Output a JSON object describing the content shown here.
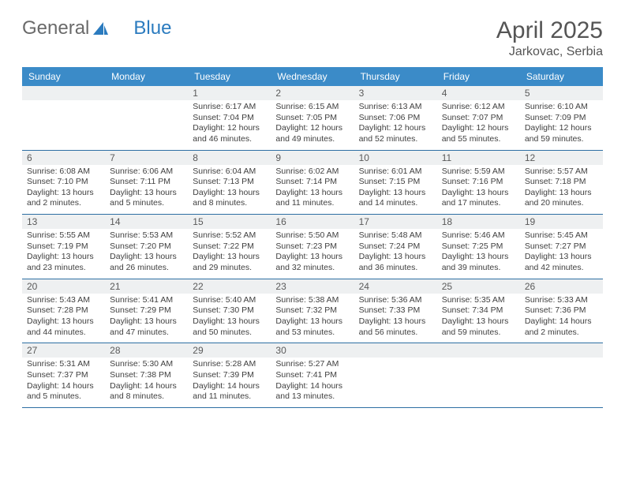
{
  "logo": {
    "text_a": "General",
    "text_b": "Blue"
  },
  "title": "April 2025",
  "subtitle": "Jarkovac, Serbia",
  "colors": {
    "header_bg": "#3b8bc8",
    "header_text": "#ffffff",
    "daynum_bg": "#eef0f1",
    "daynum_text": "#5a5a5a",
    "body_text": "#404040",
    "week_divider": "#2e6fa3",
    "page_bg": "#ffffff",
    "logo_gray": "#6a6a6a",
    "logo_blue": "#2b7bbf"
  },
  "weekdays": [
    "Sunday",
    "Monday",
    "Tuesday",
    "Wednesday",
    "Thursday",
    "Friday",
    "Saturday"
  ],
  "weeks": [
    [
      {
        "day": "",
        "sunrise": "",
        "sunset": "",
        "daylight": ""
      },
      {
        "day": "",
        "sunrise": "",
        "sunset": "",
        "daylight": ""
      },
      {
        "day": "1",
        "sunrise": "Sunrise: 6:17 AM",
        "sunset": "Sunset: 7:04 PM",
        "daylight": "Daylight: 12 hours and 46 minutes."
      },
      {
        "day": "2",
        "sunrise": "Sunrise: 6:15 AM",
        "sunset": "Sunset: 7:05 PM",
        "daylight": "Daylight: 12 hours and 49 minutes."
      },
      {
        "day": "3",
        "sunrise": "Sunrise: 6:13 AM",
        "sunset": "Sunset: 7:06 PM",
        "daylight": "Daylight: 12 hours and 52 minutes."
      },
      {
        "day": "4",
        "sunrise": "Sunrise: 6:12 AM",
        "sunset": "Sunset: 7:07 PM",
        "daylight": "Daylight: 12 hours and 55 minutes."
      },
      {
        "day": "5",
        "sunrise": "Sunrise: 6:10 AM",
        "sunset": "Sunset: 7:09 PM",
        "daylight": "Daylight: 12 hours and 59 minutes."
      }
    ],
    [
      {
        "day": "6",
        "sunrise": "Sunrise: 6:08 AM",
        "sunset": "Sunset: 7:10 PM",
        "daylight": "Daylight: 13 hours and 2 minutes."
      },
      {
        "day": "7",
        "sunrise": "Sunrise: 6:06 AM",
        "sunset": "Sunset: 7:11 PM",
        "daylight": "Daylight: 13 hours and 5 minutes."
      },
      {
        "day": "8",
        "sunrise": "Sunrise: 6:04 AM",
        "sunset": "Sunset: 7:13 PM",
        "daylight": "Daylight: 13 hours and 8 minutes."
      },
      {
        "day": "9",
        "sunrise": "Sunrise: 6:02 AM",
        "sunset": "Sunset: 7:14 PM",
        "daylight": "Daylight: 13 hours and 11 minutes."
      },
      {
        "day": "10",
        "sunrise": "Sunrise: 6:01 AM",
        "sunset": "Sunset: 7:15 PM",
        "daylight": "Daylight: 13 hours and 14 minutes."
      },
      {
        "day": "11",
        "sunrise": "Sunrise: 5:59 AM",
        "sunset": "Sunset: 7:16 PM",
        "daylight": "Daylight: 13 hours and 17 minutes."
      },
      {
        "day": "12",
        "sunrise": "Sunrise: 5:57 AM",
        "sunset": "Sunset: 7:18 PM",
        "daylight": "Daylight: 13 hours and 20 minutes."
      }
    ],
    [
      {
        "day": "13",
        "sunrise": "Sunrise: 5:55 AM",
        "sunset": "Sunset: 7:19 PM",
        "daylight": "Daylight: 13 hours and 23 minutes."
      },
      {
        "day": "14",
        "sunrise": "Sunrise: 5:53 AM",
        "sunset": "Sunset: 7:20 PM",
        "daylight": "Daylight: 13 hours and 26 minutes."
      },
      {
        "day": "15",
        "sunrise": "Sunrise: 5:52 AM",
        "sunset": "Sunset: 7:22 PM",
        "daylight": "Daylight: 13 hours and 29 minutes."
      },
      {
        "day": "16",
        "sunrise": "Sunrise: 5:50 AM",
        "sunset": "Sunset: 7:23 PM",
        "daylight": "Daylight: 13 hours and 32 minutes."
      },
      {
        "day": "17",
        "sunrise": "Sunrise: 5:48 AM",
        "sunset": "Sunset: 7:24 PM",
        "daylight": "Daylight: 13 hours and 36 minutes."
      },
      {
        "day": "18",
        "sunrise": "Sunrise: 5:46 AM",
        "sunset": "Sunset: 7:25 PM",
        "daylight": "Daylight: 13 hours and 39 minutes."
      },
      {
        "day": "19",
        "sunrise": "Sunrise: 5:45 AM",
        "sunset": "Sunset: 7:27 PM",
        "daylight": "Daylight: 13 hours and 42 minutes."
      }
    ],
    [
      {
        "day": "20",
        "sunrise": "Sunrise: 5:43 AM",
        "sunset": "Sunset: 7:28 PM",
        "daylight": "Daylight: 13 hours and 44 minutes."
      },
      {
        "day": "21",
        "sunrise": "Sunrise: 5:41 AM",
        "sunset": "Sunset: 7:29 PM",
        "daylight": "Daylight: 13 hours and 47 minutes."
      },
      {
        "day": "22",
        "sunrise": "Sunrise: 5:40 AM",
        "sunset": "Sunset: 7:30 PM",
        "daylight": "Daylight: 13 hours and 50 minutes."
      },
      {
        "day": "23",
        "sunrise": "Sunrise: 5:38 AM",
        "sunset": "Sunset: 7:32 PM",
        "daylight": "Daylight: 13 hours and 53 minutes."
      },
      {
        "day": "24",
        "sunrise": "Sunrise: 5:36 AM",
        "sunset": "Sunset: 7:33 PM",
        "daylight": "Daylight: 13 hours and 56 minutes."
      },
      {
        "day": "25",
        "sunrise": "Sunrise: 5:35 AM",
        "sunset": "Sunset: 7:34 PM",
        "daylight": "Daylight: 13 hours and 59 minutes."
      },
      {
        "day": "26",
        "sunrise": "Sunrise: 5:33 AM",
        "sunset": "Sunset: 7:36 PM",
        "daylight": "Daylight: 14 hours and 2 minutes."
      }
    ],
    [
      {
        "day": "27",
        "sunrise": "Sunrise: 5:31 AM",
        "sunset": "Sunset: 7:37 PM",
        "daylight": "Daylight: 14 hours and 5 minutes."
      },
      {
        "day": "28",
        "sunrise": "Sunrise: 5:30 AM",
        "sunset": "Sunset: 7:38 PM",
        "daylight": "Daylight: 14 hours and 8 minutes."
      },
      {
        "day": "29",
        "sunrise": "Sunrise: 5:28 AM",
        "sunset": "Sunset: 7:39 PM",
        "daylight": "Daylight: 14 hours and 11 minutes."
      },
      {
        "day": "30",
        "sunrise": "Sunrise: 5:27 AM",
        "sunset": "Sunset: 7:41 PM",
        "daylight": "Daylight: 14 hours and 13 minutes."
      },
      {
        "day": "",
        "sunrise": "",
        "sunset": "",
        "daylight": ""
      },
      {
        "day": "",
        "sunrise": "",
        "sunset": "",
        "daylight": ""
      },
      {
        "day": "",
        "sunrise": "",
        "sunset": "",
        "daylight": ""
      }
    ]
  ]
}
